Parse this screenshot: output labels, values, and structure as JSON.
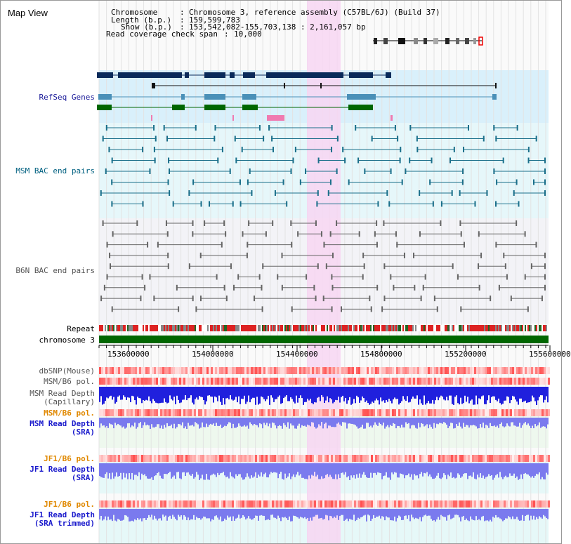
{
  "title": "Map View",
  "header": {
    "chromosome_key": "Chromosome",
    "chromosome_val": "Chromosome 3, reference assembly (C57BL/6J) (Build 37)",
    "length_key": "Length (b.p.)",
    "length_val": "159,599,783",
    "show_key": "Show (b.p.)",
    "show_val": "153,542,082-155,703,138 : 2,161,057 bp",
    "coverage_key": "Read coverage check span",
    "coverage_val": "10,000"
  },
  "tracks": {
    "refseq": "RefSeq Genes",
    "msm_bac": "MSM BAC end pairs",
    "b6n_bac": "B6N BAC end pairs",
    "repeat": "Repeat",
    "chromosome": "chromosome 3",
    "dbsnp": "dbSNP(Mouse)",
    "msm_b6_pol_cap": "MSM/B6 pol.",
    "msm_depth_cap_1": "MSM Read Depth",
    "msm_depth_cap_2": "(Capillary)",
    "msm_b6_pol_sra": "MSM/B6 pol.",
    "msm_depth_sra_1": "MSM Read Depth",
    "msm_depth_sra_2": "(SRA)",
    "jf1_b6_pol_sra": "JF1/B6 pol.",
    "jf1_depth_sra_1": "JF1 Read Depth",
    "jf1_depth_sra_2": "(SRA)",
    "jf1_b6_pol_trim": "JF1/B6 pol.",
    "jf1_depth_trim_1": "JF1 Read Depth",
    "jf1_depth_trim_2": "(SRA trimmed)"
  },
  "axis": {
    "ticks": [
      "153600000",
      "154000000",
      "154400000",
      "154800000",
      "155200000",
      "155600000"
    ]
  },
  "colors": {
    "refseq_label": "#1a1a99",
    "msm_label": "#006080",
    "b6n_label": "#555555",
    "pol_orange": "#e08800",
    "depth_blue": "#1a1acc",
    "highlight": "#f7d6f2",
    "chrom_green": "#006600"
  }
}
